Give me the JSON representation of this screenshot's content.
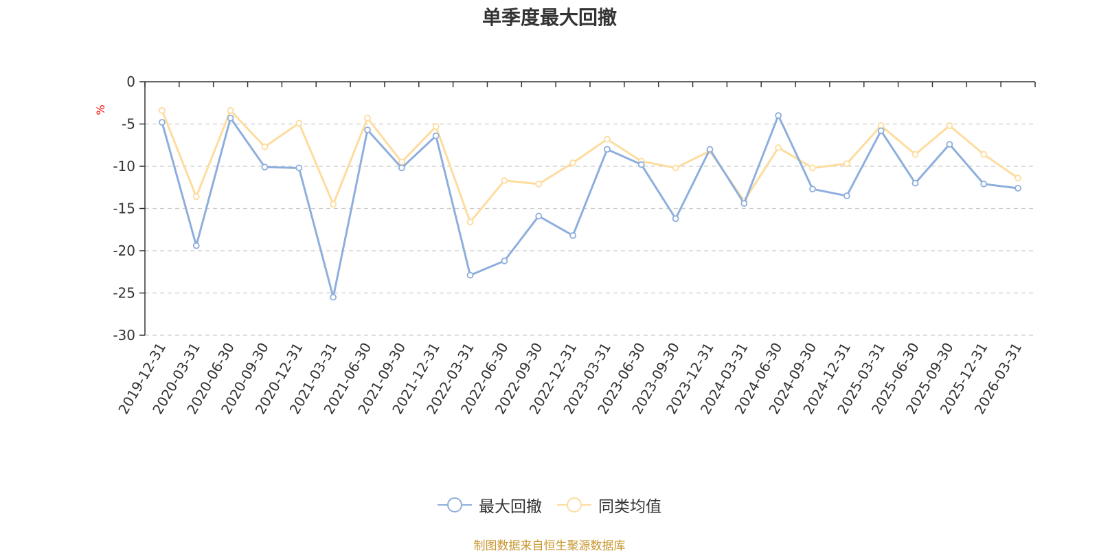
{
  "title": "单季度最大回撤",
  "source": "制图数据来自恒生聚源数据库",
  "chart_data": {
    "type": "line",
    "title": "单季度最大回撤",
    "xlabel": "",
    "ylabel": "%",
    "ylim": [
      -30,
      0
    ],
    "yticks": [
      0,
      -5,
      -10,
      -15,
      -20,
      -25,
      -30
    ],
    "grid": true,
    "legend_position": "bottom",
    "categories": [
      "2019-12-31",
      "2020-03-31",
      "2020-06-30",
      "2020-09-30",
      "2020-12-31",
      "2021-03-31",
      "2021-06-30",
      "2021-09-30",
      "2021-12-31",
      "2022-03-31",
      "2022-06-30",
      "2022-09-30",
      "2022-12-31",
      "2023-03-31",
      "2023-06-30",
      "2023-09-30",
      "2023-12-31",
      "2024-03-31",
      "2024-06-30",
      "2024-09-30",
      "2024-12-31",
      "2025-03-31",
      "2025-06-30",
      "2025-09-30",
      "2025-12-31",
      "2026-03-31"
    ],
    "series": [
      {
        "name": "最大回撤",
        "color": "#8eaedd",
        "values": [
          -4.8,
          -19.4,
          -4.3,
          -10.1,
          -10.2,
          -25.5,
          -5.7,
          -10.2,
          -6.4,
          -22.9,
          -21.2,
          -15.9,
          -18.2,
          -8.0,
          -9.8,
          -16.2,
          -8.0,
          -14.4,
          -4.0,
          -12.7,
          -13.5,
          -5.8,
          -12.0,
          -7.4,
          -12.1,
          -12.6
        ]
      },
      {
        "name": "同类均值",
        "color": "#fddc9e",
        "values": [
          -3.4,
          -13.6,
          -3.4,
          -7.7,
          -4.9,
          -14.5,
          -4.3,
          -9.5,
          -5.3,
          -16.6,
          -11.7,
          -12.1,
          -9.6,
          -6.8,
          -9.4,
          -10.2,
          -8.2,
          -14.1,
          -7.8,
          -10.2,
          -9.7,
          -5.2,
          -8.6,
          -5.2,
          -8.6,
          -11.4
        ]
      }
    ]
  }
}
